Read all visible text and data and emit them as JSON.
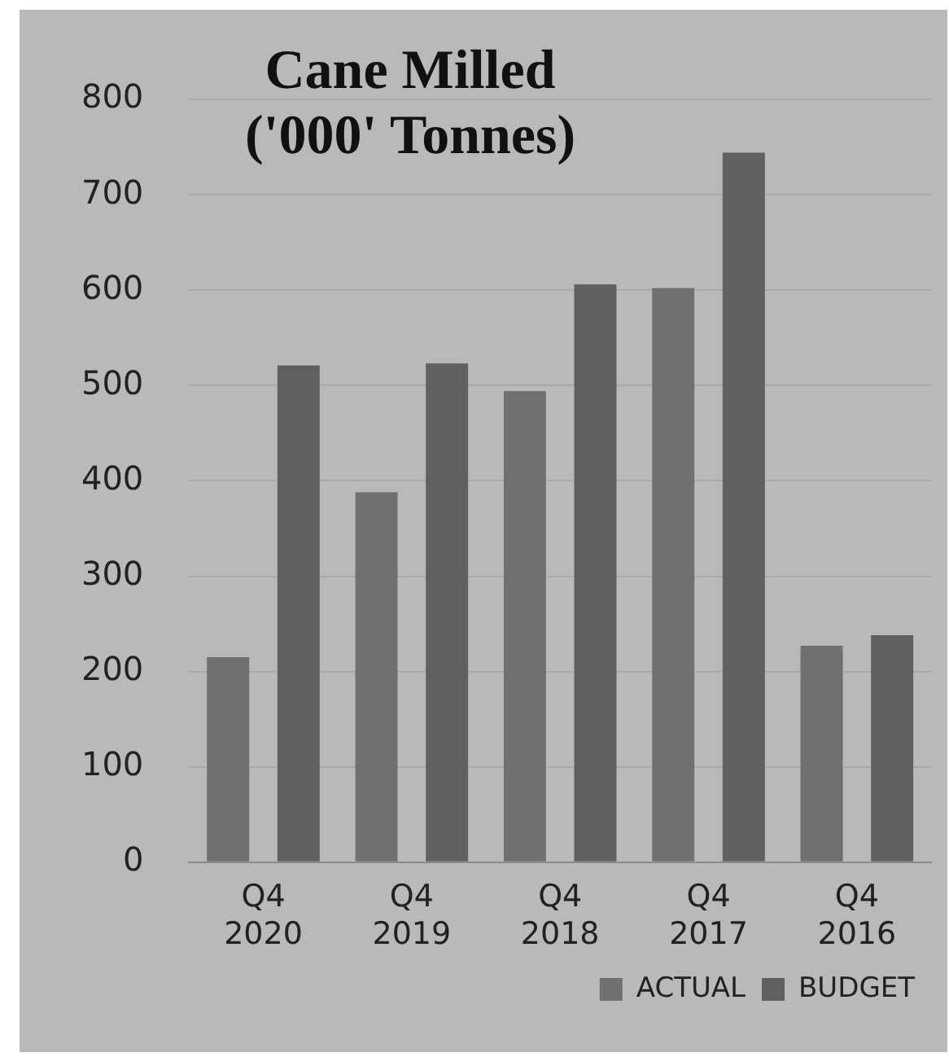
{
  "chart_data": {
    "type": "bar",
    "title": "Cane Milled ('000' Tonnes)",
    "categories": [
      "Q4 2020",
      "Q4 2019",
      "Q4 2018",
      "Q4 2017",
      "Q4 2016"
    ],
    "series": [
      {
        "name": "ACTUAL",
        "color": "#707070",
        "values": [
          215,
          388,
          494,
          602,
          227
        ]
      },
      {
        "name": "BUDGET",
        "color": "#606060",
        "values": [
          521,
          523,
          606,
          744,
          238
        ]
      }
    ],
    "ylim": [
      0,
      800
    ],
    "yticks": [
      0,
      100,
      200,
      300,
      400,
      500,
      600,
      700,
      800
    ],
    "grid": "y",
    "legend": "bottom right"
  }
}
